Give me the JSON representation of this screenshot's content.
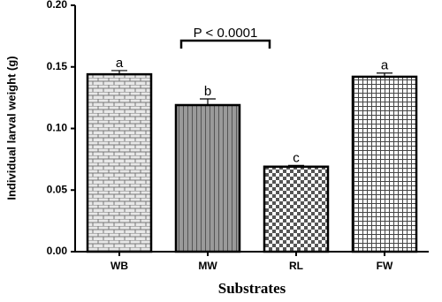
{
  "chart_data": {
    "type": "bar",
    "y_label": "Individual larval weight (g)",
    "x_label": "Substrates",
    "categories": [
      "WB",
      "MW",
      "RL",
      "FW"
    ],
    "values": [
      0.144,
      0.119,
      0.069,
      0.142
    ],
    "errors": [
      0.003,
      0.005,
      0.001,
      0.003
    ],
    "letters": [
      "a",
      "b",
      "c",
      "a"
    ],
    "annotation": "P < 0.0001",
    "ylim": [
      0,
      0.2
    ],
    "yticks": [
      {
        "value": 0,
        "label": "0.00"
      },
      {
        "value": 0.05,
        "label": "0.05"
      },
      {
        "value": 0.1,
        "label": "0.10"
      },
      {
        "value": 0.15,
        "label": "0.15"
      },
      {
        "value": 0.2,
        "label": "0.20"
      }
    ]
  }
}
